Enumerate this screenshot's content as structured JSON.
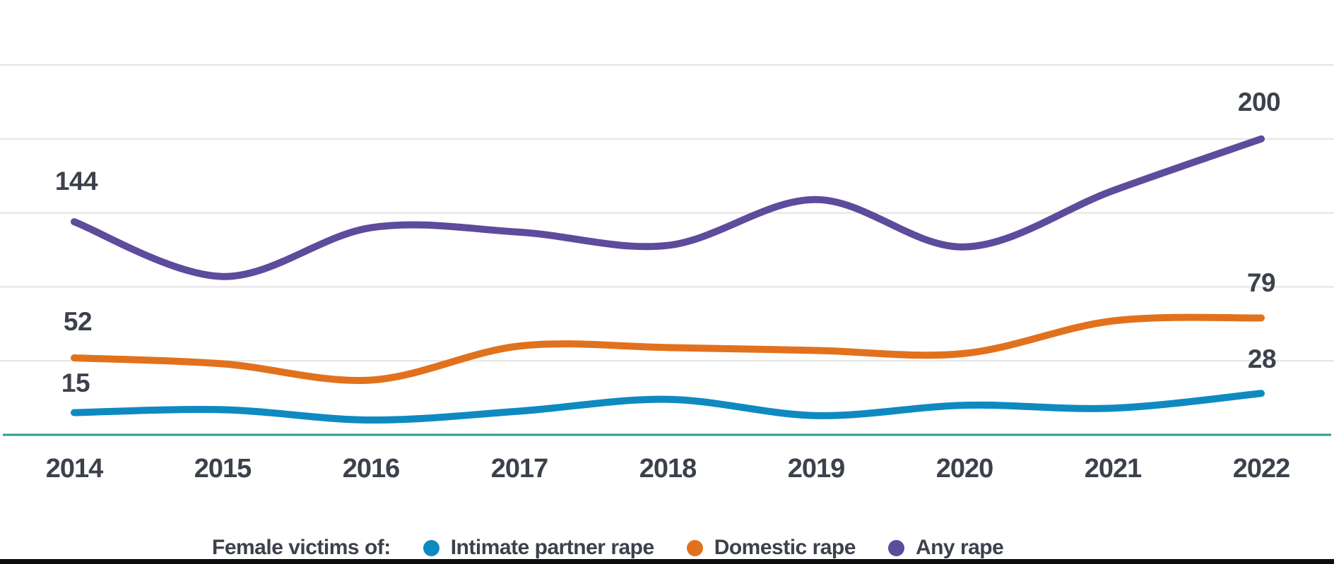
{
  "chart_data": {
    "type": "line",
    "title": "",
    "categories": [
      "2014",
      "2015",
      "2016",
      "2017",
      "2018",
      "2019",
      "2020",
      "2021",
      "2022"
    ],
    "series": [
      {
        "name": "Intimate partner rape",
        "color": "#0f8ac1",
        "values": [
          15,
          17,
          10,
          16,
          24,
          13,
          20,
          18,
          28
        ]
      },
      {
        "name": "Domestic rape",
        "color": "#e2711d",
        "values": [
          52,
          48,
          37,
          60,
          59,
          57,
          55,
          77,
          79
        ]
      },
      {
        "name": "Any rape",
        "color": "#5d4b9c",
        "values": [
          144,
          107,
          140,
          137,
          128,
          159,
          127,
          165,
          200
        ]
      }
    ],
    "ylim": [
      0,
      250
    ],
    "gridline_values": [
      50,
      100,
      150,
      200,
      250
    ],
    "grid": "horizontal-only",
    "legend_position": "bottom",
    "legend_title": "Female victims of:",
    "endpoint_labels": {
      "intimate_partner_first": "15",
      "intimate_partner_last": "28",
      "domestic_first": "52",
      "domestic_last": "79",
      "any_first": "144",
      "any_last": "200"
    }
  },
  "colors": {
    "axis_line": "#2a9c8e",
    "gridline": "#e3e3e3",
    "label_text": "#3c414b",
    "footer_bar": "#0c0e10"
  }
}
